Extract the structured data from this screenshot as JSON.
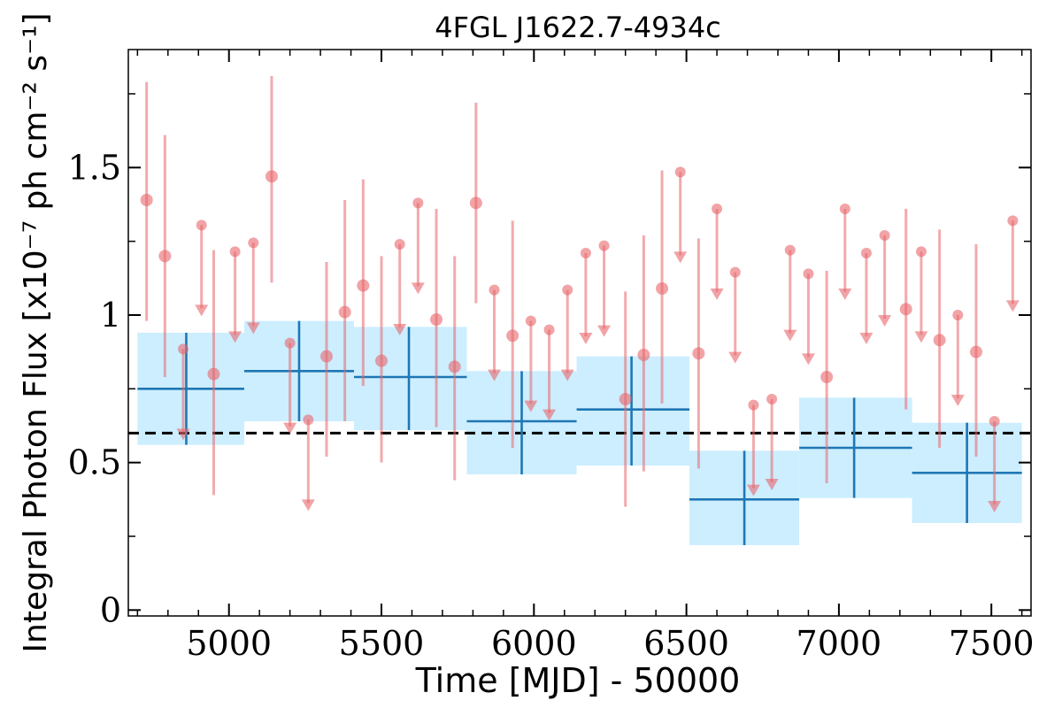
{
  "chart_data": {
    "type": "scatter",
    "title": "4FGL J1622.7-4934c",
    "xlabel": "Time [MJD] - 50000",
    "ylabel": "Integral Photon Flux [x10⁻⁷ ph cm⁻² s⁻¹]",
    "xlim": [
      4670,
      7630
    ],
    "ylim": [
      -0.02,
      1.9
    ],
    "x_ticks": [
      5000,
      5500,
      6000,
      6500,
      7000,
      7500
    ],
    "x_tick_labels": [
      "5000",
      "5500",
      "6000",
      "6500",
      "7000",
      "7500"
    ],
    "y_ticks": [
      0,
      0.5,
      1,
      1.5
    ],
    "y_tick_labels": [
      "0",
      "0.5",
      "1",
      "1.5"
    ],
    "y_minor_ticks": [
      0.25,
      0.75,
      1.25,
      1.75
    ],
    "reference_line": {
      "y": 0.6,
      "style": "dashed",
      "color": "#000000"
    },
    "colors": {
      "short_bins": "#e8666b",
      "long_bins": "#1f77b4",
      "long_band": "#cceeff"
    },
    "long_bins": [
      {
        "x0": 4700,
        "x1": 5050,
        "xc": 4860,
        "y": 0.75,
        "lo": 0.56,
        "hi": 0.94
      },
      {
        "x0": 5050,
        "x1": 5410,
        "xc": 5230,
        "y": 0.81,
        "lo": 0.64,
        "hi": 0.98
      },
      {
        "x0": 5410,
        "x1": 5780,
        "xc": 5590,
        "y": 0.79,
        "lo": 0.61,
        "hi": 0.96
      },
      {
        "x0": 5780,
        "x1": 6140,
        "xc": 5960,
        "y": 0.64,
        "lo": 0.46,
        "hi": 0.81
      },
      {
        "x0": 6140,
        "x1": 6510,
        "xc": 6320,
        "y": 0.68,
        "lo": 0.49,
        "hi": 0.86
      },
      {
        "x0": 6510,
        "x1": 6870,
        "xc": 6690,
        "y": 0.375,
        "lo": 0.22,
        "hi": 0.54
      },
      {
        "x0": 6870,
        "x1": 7240,
        "xc": 7050,
        "y": 0.55,
        "lo": 0.38,
        "hi": 0.72
      },
      {
        "x0": 7240,
        "x1": 7600,
        "xc": 7420,
        "y": 0.465,
        "lo": 0.295,
        "hi": 0.635
      }
    ],
    "short_bins_measured": [
      {
        "x": 4730,
        "y": 1.39,
        "lo": 0.98,
        "hi": 1.79
      },
      {
        "x": 4790,
        "y": 1.2,
        "lo": 0.79,
        "hi": 1.61
      },
      {
        "x": 4950,
        "y": 0.8,
        "lo": 0.39,
        "hi": 1.22
      },
      {
        "x": 5140,
        "y": 1.47,
        "lo": 1.11,
        "hi": 1.81
      },
      {
        "x": 5320,
        "y": 0.86,
        "lo": 0.52,
        "hi": 1.18
      },
      {
        "x": 5380,
        "y": 1.01,
        "lo": 0.64,
        "hi": 1.39
      },
      {
        "x": 5440,
        "y": 1.1,
        "lo": 0.76,
        "hi": 1.46
      },
      {
        "x": 5500,
        "y": 0.845,
        "lo": 0.5,
        "hi": 1.2
      },
      {
        "x": 5680,
        "y": 0.985,
        "lo": 0.62,
        "hi": 1.36
      },
      {
        "x": 5740,
        "y": 0.825,
        "lo": 0.44,
        "hi": 1.2
      },
      {
        "x": 5810,
        "y": 1.38,
        "lo": 1.04,
        "hi": 1.72
      },
      {
        "x": 5930,
        "y": 0.93,
        "lo": 0.55,
        "hi": 1.32
      },
      {
        "x": 6300,
        "y": 0.715,
        "lo": 0.35,
        "hi": 1.08
      },
      {
        "x": 6360,
        "y": 0.865,
        "lo": 0.47,
        "hi": 1.27
      },
      {
        "x": 6420,
        "y": 1.09,
        "lo": 0.7,
        "hi": 1.49
      },
      {
        "x": 6540,
        "y": 0.87,
        "lo": 0.48,
        "hi": 1.26
      },
      {
        "x": 6960,
        "y": 0.79,
        "lo": 0.43,
        "hi": 1.15
      },
      {
        "x": 7220,
        "y": 1.02,
        "lo": 0.68,
        "hi": 1.36
      },
      {
        "x": 7330,
        "y": 0.915,
        "lo": 0.55,
        "hi": 1.29
      },
      {
        "x": 7450,
        "y": 0.875,
        "lo": 0.52,
        "hi": 1.24
      }
    ],
    "short_bins_upper_limits": [
      {
        "x": 4850,
        "y": 0.885
      },
      {
        "x": 4910,
        "y": 1.305
      },
      {
        "x": 5020,
        "y": 1.215
      },
      {
        "x": 5080,
        "y": 1.245
      },
      {
        "x": 5200,
        "y": 0.905
      },
      {
        "x": 5260,
        "y": 0.645
      },
      {
        "x": 5560,
        "y": 1.24
      },
      {
        "x": 5620,
        "y": 1.38
      },
      {
        "x": 5870,
        "y": 1.085
      },
      {
        "x": 5990,
        "y": 0.98
      },
      {
        "x": 6050,
        "y": 0.95
      },
      {
        "x": 6110,
        "y": 1.085
      },
      {
        "x": 6170,
        "y": 1.21
      },
      {
        "x": 6230,
        "y": 1.235
      },
      {
        "x": 6480,
        "y": 1.485
      },
      {
        "x": 6600,
        "y": 1.36
      },
      {
        "x": 6660,
        "y": 1.145
      },
      {
        "x": 6720,
        "y": 0.695
      },
      {
        "x": 6780,
        "y": 0.715
      },
      {
        "x": 6840,
        "y": 1.22
      },
      {
        "x": 6900,
        "y": 1.14
      },
      {
        "x": 7020,
        "y": 1.36
      },
      {
        "x": 7090,
        "y": 1.21
      },
      {
        "x": 7150,
        "y": 1.27
      },
      {
        "x": 7270,
        "y": 1.215
      },
      {
        "x": 7390,
        "y": 1.0
      },
      {
        "x": 7510,
        "y": 0.64
      },
      {
        "x": 7570,
        "y": 1.32
      }
    ]
  }
}
